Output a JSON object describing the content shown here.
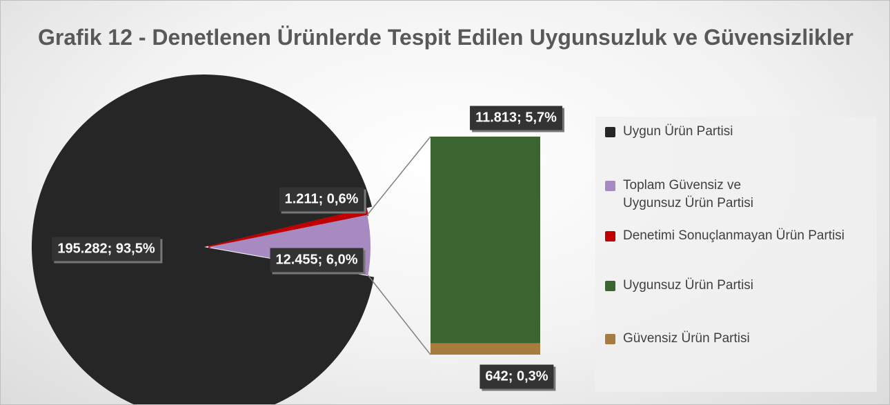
{
  "chart_data": {
    "type": "bar_of_pie",
    "title": "Grafik 12 - Denetlenen Ürünlerde Tespit Edilen Uygunsuzluk ve Güvensizlikler",
    "pie": {
      "categories": [
        "Uygun Ürün Partisi",
        "Toplam Güvensiz ve Uygunsuz Ürün Partisi",
        "Denetimi Sonuçlanmayan Ürün Partisi"
      ],
      "values": [
        195282,
        12455,
        1211
      ],
      "value_labels": [
        "195.282; 93,5%",
        "12.455; 6,0%",
        "1.211; 0,6%"
      ],
      "colors": [
        "#262626",
        "#a68ac0",
        "#c00000"
      ]
    },
    "bar": {
      "categories": [
        "Uygunsuz Ürün Partisi",
        "Güvensiz Ürün Partisi"
      ],
      "values": [
        11813,
        642
      ],
      "value_labels": [
        "11.813; 5,7%",
        "642; 0,3%"
      ],
      "colors": [
        "#3a6430",
        "#a67c3f"
      ]
    }
  }
}
